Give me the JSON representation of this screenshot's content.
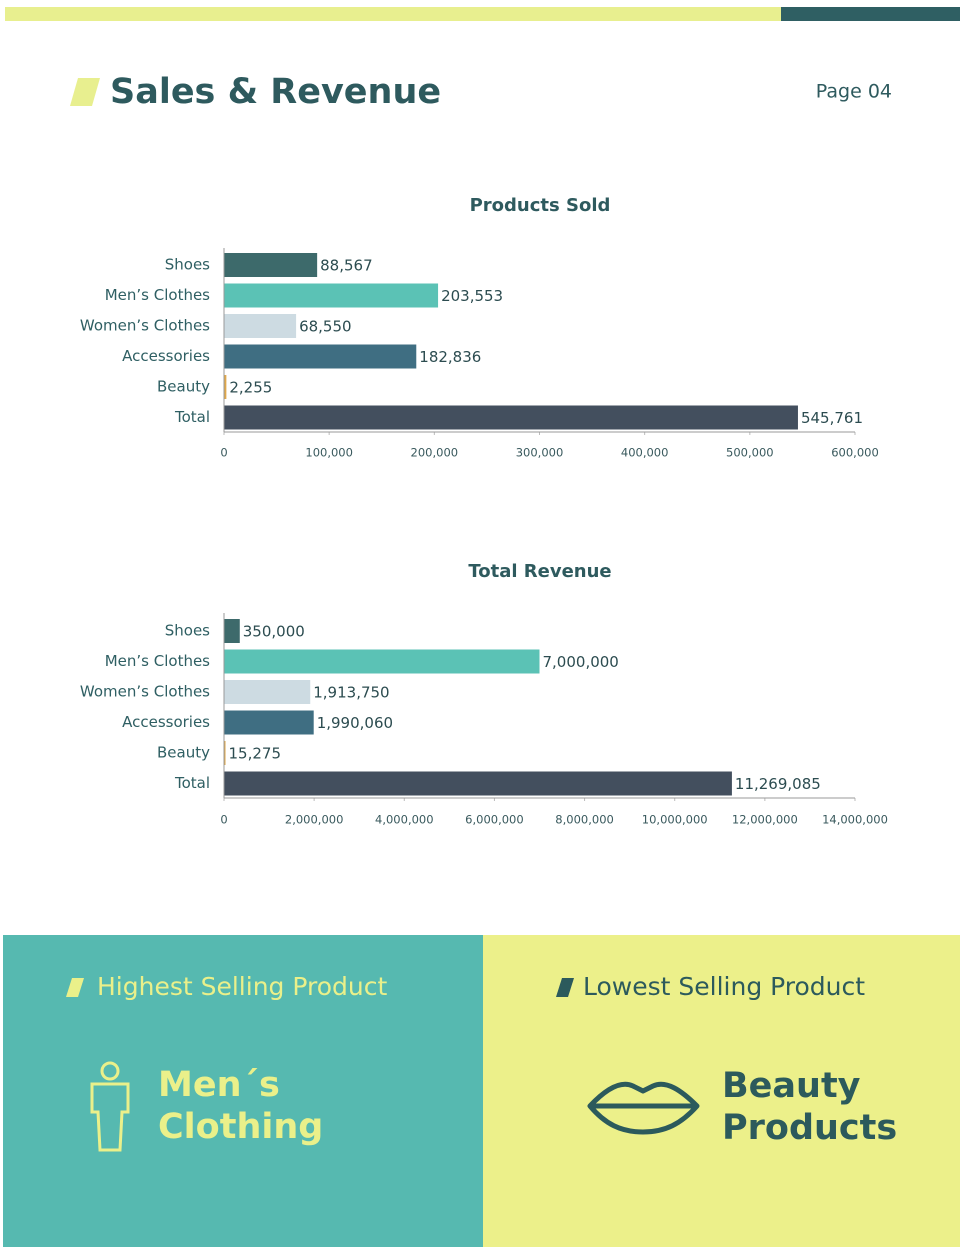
{
  "header": {
    "title": "Sales & Revenue",
    "page": "Page 04"
  },
  "chart_data": [
    {
      "type": "bar",
      "orientation": "horizontal",
      "title": "Products Sold",
      "categories": [
        "Shoes",
        "Men’s Clothes",
        "Women’s Clothes",
        "Accessories",
        "Beauty",
        "Total"
      ],
      "values": [
        88567,
        203553,
        68550,
        182836,
        2255,
        545761
      ],
      "value_labels": [
        "88,567",
        "203,553",
        "68,550",
        "182,836",
        "2,255",
        "545,761"
      ],
      "colors": [
        "#3d6a6b",
        "#5bc2b5",
        "#cddbe2",
        "#3f6e82",
        "#e0a84a",
        "#434f5e"
      ],
      "xlim": [
        0,
        600000
      ],
      "xticks": [
        0,
        {
          "value": 100000,
          "label": "100,000"
        },
        {
          "value": 200000,
          "label": "200,000"
        },
        {
          "value": 300000,
          "label": "300,000"
        },
        {
          "value": 400000,
          "label": "400,000"
        },
        {
          "value": 500000,
          "label": "500,000"
        },
        {
          "value": 600000,
          "label": "600,000"
        }
      ]
    },
    {
      "type": "bar",
      "orientation": "horizontal",
      "title": "Total Revenue",
      "categories": [
        "Shoes",
        "Men’s Clothes",
        "Women’s Clothes",
        "Accessories",
        "Beauty",
        "Total"
      ],
      "values": [
        350000,
        7000000,
        1913750,
        1990060,
        15275,
        11269085
      ],
      "value_labels": [
        "350,000",
        "7,000,000",
        "1,913,750",
        "1,990,060",
        "15,275",
        "11,269,085"
      ],
      "colors": [
        "#3d6a6b",
        "#5bc2b5",
        "#cddbe2",
        "#3f6e82",
        "#e0a84a",
        "#434f5e"
      ],
      "xlim": [
        0,
        14000000
      ],
      "xticks": [
        0,
        {
          "value": 2000000,
          "label": "2,000,000"
        },
        {
          "value": 4000000,
          "label": "4,000,000"
        },
        {
          "value": 6000000,
          "label": "6,000,000"
        },
        {
          "value": 8000000,
          "label": "8,000,000"
        },
        {
          "value": 10000000,
          "label": "10,000,000"
        },
        {
          "value": 12000000,
          "label": "12,000,000"
        },
        {
          "value": 14000000,
          "label": "14,000,000"
        }
      ]
    }
  ],
  "panels": [
    {
      "heading": "Highest Selling Product",
      "lines": [
        "Men´s",
        "Clothing"
      ]
    },
    {
      "heading": "Lowest Selling Product",
      "lines": [
        "Beauty",
        "Products"
      ]
    }
  ]
}
